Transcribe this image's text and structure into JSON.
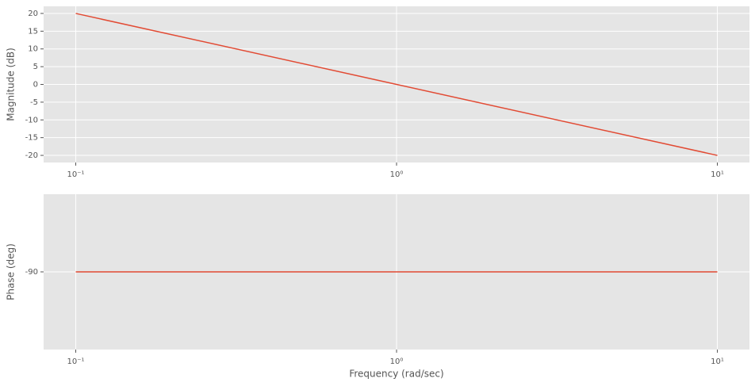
{
  "chart_data": [
    {
      "type": "line",
      "ylabel": "Magnitude (dB)",
      "xscale": "log",
      "grid": true,
      "color": "#e24a33",
      "x": [
        0.1,
        1,
        10
      ],
      "values": [
        20,
        0,
        -20
      ],
      "xlim": [
        0.0794,
        12.59
      ],
      "xticks": [
        {
          "value": 0.1,
          "label": "10⁻¹"
        },
        {
          "value": 1,
          "label": "10⁰"
        },
        {
          "value": 10,
          "label": "10¹"
        }
      ],
      "ylim": [
        -22,
        22
      ],
      "yticks": [
        -20,
        -15,
        -10,
        -5,
        0,
        5,
        10,
        15,
        20
      ]
    },
    {
      "type": "line",
      "ylabel": "Phase (deg)",
      "xlabel": "Frequency (rad/sec)",
      "xscale": "log",
      "grid": true,
      "color": "#e24a33",
      "x": [
        0.1,
        10
      ],
      "values": [
        -90,
        -90
      ],
      "xlim": [
        0.0794,
        12.59
      ],
      "xticks": [
        {
          "value": 0.1,
          "label": "10⁻¹"
        },
        {
          "value": 1,
          "label": "10⁰"
        },
        {
          "value": 10,
          "label": "10¹"
        }
      ],
      "ylim": [
        -100,
        -80
      ],
      "yticks": [
        -90
      ]
    }
  ]
}
